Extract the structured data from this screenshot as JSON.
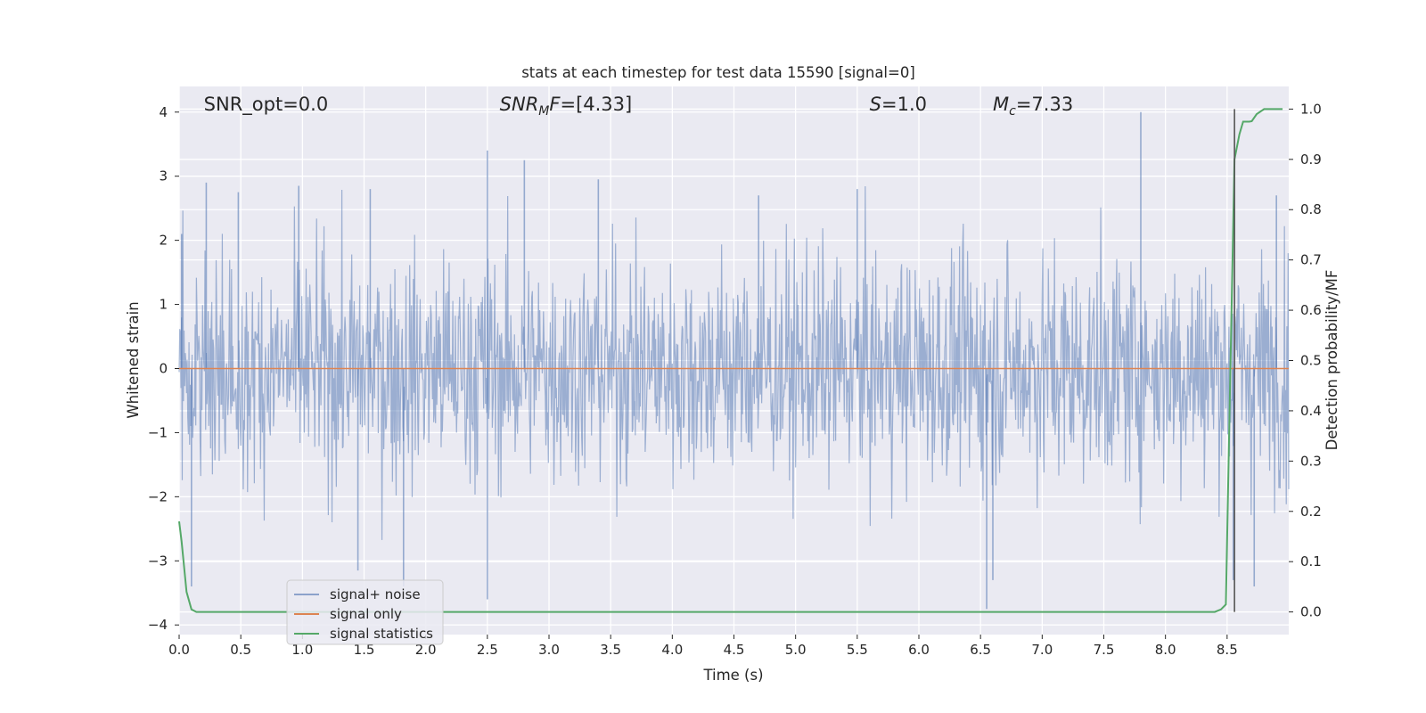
{
  "chart_data": {
    "type": "line",
    "title": "stats at each timestep for test data 15590 [signal=0]",
    "xlabel": "Time (s)",
    "ylabel": "Whitened strain",
    "y2label": "Detection probability/MF",
    "xlim": [
      0.0,
      9.0
    ],
    "ylim": [
      -4.15,
      4.4
    ],
    "y2lim": [
      -0.045,
      1.045
    ],
    "x_ticks": [
      "0.0",
      "0.5",
      "1.0",
      "1.5",
      "2.0",
      "2.5",
      "3.0",
      "3.5",
      "4.0",
      "4.5",
      "5.0",
      "5.5",
      "6.0",
      "6.5",
      "7.0",
      "7.5",
      "8.0",
      "8.5"
    ],
    "y_ticks": [
      "4",
      "3",
      "2",
      "1",
      "0",
      "−1",
      "−2",
      "−3",
      "−4"
    ],
    "y2_ticks": [
      "1.0",
      "0.9",
      "0.8",
      "0.7",
      "0.6",
      "0.5",
      "0.4",
      "0.3",
      "0.2",
      "0.1",
      "0.0"
    ],
    "grid": true,
    "legend_placement": "lower-left",
    "annotations": [
      {
        "kind": "plain",
        "text": "SNR_opt=0.0",
        "x": 0.2
      },
      {
        "kind": "sub",
        "main": "SNR",
        "sub": "M",
        "rest": "F=[4.33]",
        "x": 2.6
      },
      {
        "kind": "italic",
        "main": "S",
        "rest": "=1.0",
        "x": 5.6
      },
      {
        "kind": "sub",
        "main": "M",
        "sub": "c",
        "rest": "=7.33",
        "x": 6.6
      }
    ],
    "detection_time": 8.56,
    "series": [
      {
        "name": "signal+ noise",
        "color": "#4c72b0",
        "note_values": "dense whitened noise, approx. amplitude ±1 to ±3, peaks near 4.0",
        "peaks": [
          {
            "x": 0.02,
            "y": 2.1
          },
          {
            "x": 0.1,
            "y": -3.4
          },
          {
            "x": 0.22,
            "y": 2.9
          },
          {
            "x": 0.48,
            "y": 2.75
          },
          {
            "x": 0.97,
            "y": 2.85
          },
          {
            "x": 1.45,
            "y": -3.15
          },
          {
            "x": 1.55,
            "y": 2.8
          },
          {
            "x": 1.82,
            "y": -3.4
          },
          {
            "x": 2.5,
            "y": 3.4
          },
          {
            "x": 2.5,
            "y": -3.6
          },
          {
            "x": 2.8,
            "y": 3.25
          },
          {
            "x": 3.4,
            "y": 2.95
          },
          {
            "x": 4.7,
            "y": 2.7
          },
          {
            "x": 5.5,
            "y": 2.8
          },
          {
            "x": 6.55,
            "y": -3.75
          },
          {
            "x": 6.6,
            "y": -3.3
          },
          {
            "x": 7.8,
            "y": 4.0
          },
          {
            "x": 8.55,
            "y": -3.3
          },
          {
            "x": 8.72,
            "y": -3.4
          },
          {
            "x": 8.9,
            "y": 2.7
          }
        ]
      },
      {
        "name": "signal only",
        "color": "#dd8452",
        "x": [
          0.0,
          9.0
        ],
        "y": [
          0.0,
          0.0
        ]
      },
      {
        "name": "signal statistics",
        "color": "#55a868",
        "axis": "right",
        "x": [
          0.0,
          0.02,
          0.06,
          0.1,
          0.14,
          0.5,
          1.0,
          2.0,
          3.0,
          4.0,
          5.0,
          6.0,
          7.0,
          8.0,
          8.4,
          8.45,
          8.49,
          8.52,
          8.56,
          8.6,
          8.63,
          8.68,
          8.7,
          8.74,
          8.8,
          8.9,
          8.95
        ],
        "y": [
          0.18,
          0.14,
          0.04,
          0.005,
          0.0,
          0.0,
          0.0,
          0.0,
          0.0,
          0.0,
          0.0,
          0.0,
          0.0,
          0.0,
          0.0,
          0.005,
          0.015,
          0.4,
          0.9,
          0.95,
          0.975,
          0.975,
          0.976,
          0.99,
          1.0,
          1.0,
          1.0
        ]
      }
    ]
  }
}
